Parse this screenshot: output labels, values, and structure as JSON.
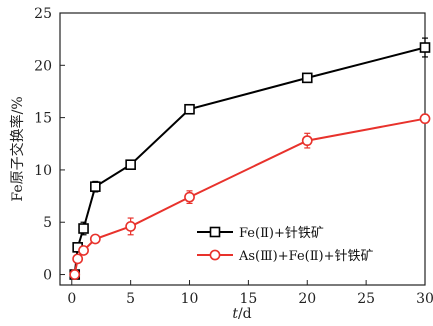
{
  "chart_data": {
    "type": "line",
    "xlabel": "t/d",
    "ylabel": "Fe原子交换率/%",
    "xlim": [
      -1,
      30
    ],
    "ylim": [
      -1,
      25
    ],
    "xticks": [
      0,
      5,
      10,
      15,
      20,
      25,
      30
    ],
    "yticks": [
      0,
      5,
      10,
      15,
      20,
      25
    ],
    "grid": false,
    "legend_position": "lower-right",
    "series": [
      {
        "name": "Fe(Ⅱ)+针铁矿",
        "color": "#000000",
        "marker": "square",
        "x": [
          0.25,
          0.5,
          1,
          2,
          5,
          10,
          20,
          30
        ],
        "y": [
          0,
          2.6,
          4.4,
          8.4,
          10.5,
          15.8,
          18.8,
          21.7
        ],
        "error": [
          0.2,
          0.3,
          0.6,
          0.5,
          0.4,
          0.3,
          0.3,
          0.9
        ]
      },
      {
        "name": "As(Ⅲ)+Fe(Ⅱ)+针铁矿",
        "color": "#e8322c",
        "marker": "circle",
        "x": [
          0.25,
          0.5,
          1,
          2,
          5,
          10,
          20,
          30
        ],
        "y": [
          0,
          1.5,
          2.3,
          3.4,
          4.6,
          7.4,
          12.8,
          14.9
        ],
        "error": [
          0.2,
          0.2,
          0.3,
          0.3,
          0.8,
          0.6,
          0.7,
          0.4
        ]
      }
    ]
  }
}
